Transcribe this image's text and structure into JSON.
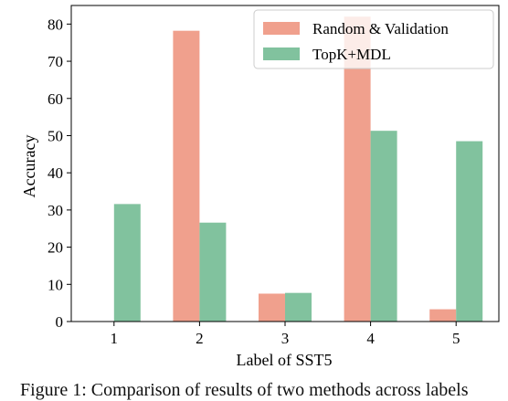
{
  "chart_data": {
    "type": "bar",
    "categories": [
      "1",
      "2",
      "3",
      "4",
      "5"
    ],
    "series": [
      {
        "name": "Random & Validation",
        "values": [
          0,
          78.2,
          7.5,
          82,
          3.3
        ],
        "color": "#f0a08d"
      },
      {
        "name": "TopK+MDL",
        "values": [
          31.6,
          26.6,
          7.7,
          51.3,
          48.5
        ],
        "color": "#81c29e"
      }
    ],
    "title": "",
    "xlabel": "Label of SST5",
    "ylabel": "Accuracy",
    "ylim": [
      0,
      85
    ],
    "yticks": [
      0,
      10,
      20,
      30,
      40,
      50,
      60,
      70,
      80
    ],
    "grid": false,
    "legend_position": "top-right"
  },
  "caption": "Figure 1: Comparison of results of two methods across labels"
}
